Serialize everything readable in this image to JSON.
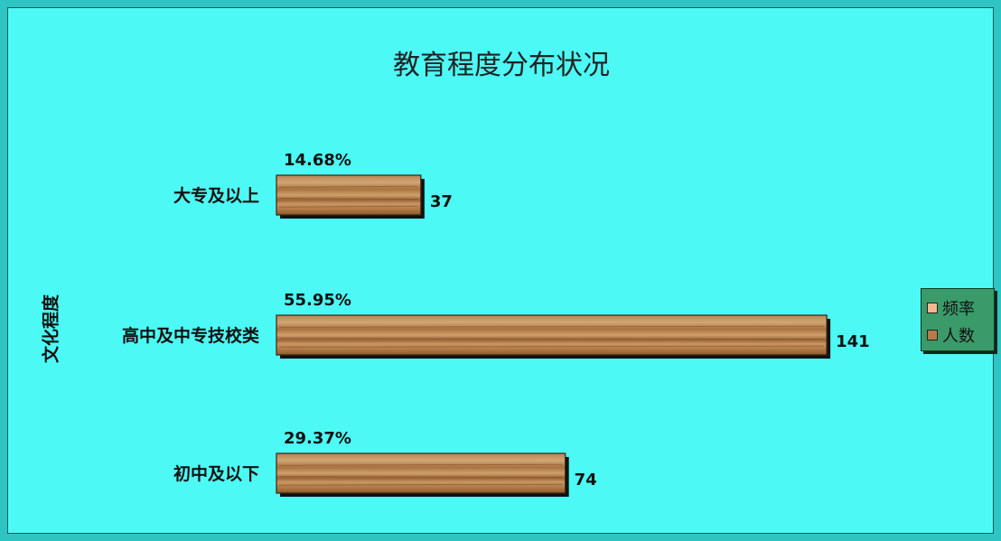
{
  "chart_data": {
    "type": "bar",
    "orientation": "horizontal",
    "title": "教育程度分布状况",
    "ylabel": "文化程度",
    "categories": [
      "大专及以上",
      "高中及中专技校类",
      "初中及以下"
    ],
    "series": [
      {
        "name": "频率",
        "values": [
          "14.68%",
          "55.95%",
          "29.37%"
        ],
        "color": "#f4b890"
      },
      {
        "name": "人数",
        "values": [
          37,
          141,
          74
        ],
        "color": "#b97a4a"
      }
    ],
    "legend_position": "right",
    "grid": false
  },
  "colors": {
    "outer_background": "#2ec4c4",
    "plot_background": "#4df9f5",
    "legend_background": "#3a9a6a",
    "bar_wood_light": "#c99b6a",
    "bar_wood_dark": "#8a5a30"
  }
}
